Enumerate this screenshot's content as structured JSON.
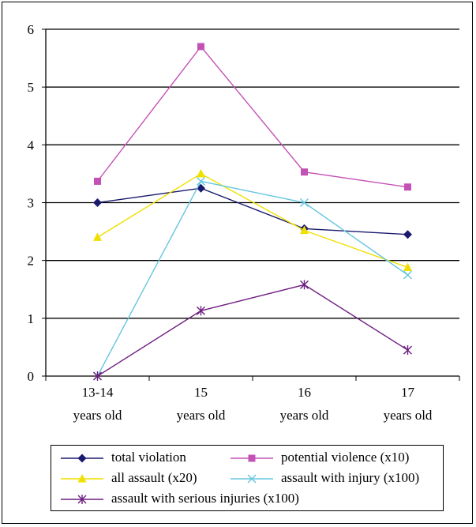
{
  "chart_data": {
    "type": "line",
    "title": "",
    "xlabel": "",
    "ylabel": "",
    "categories": [
      [
        "13-14",
        "years old"
      ],
      [
        "15",
        "years old"
      ],
      [
        "16",
        "years old"
      ],
      [
        "17",
        "years old"
      ]
    ],
    "ylim": [
      0,
      6
    ],
    "yticks": [
      0,
      1,
      2,
      3,
      4,
      5,
      6
    ],
    "grid": "horizontal major gridlines",
    "legend_position": "bottom",
    "series": [
      {
        "name": "total violation",
        "values": [
          3.0,
          3.25,
          2.55,
          2.45
        ],
        "color": "#1a1a6e",
        "marker": "diamond"
      },
      {
        "name": "potential violence (x10)",
        "values": [
          3.37,
          5.7,
          3.53,
          3.27
        ],
        "color": "#c452b6",
        "marker": "square"
      },
      {
        "name": "all assault (x20)",
        "values": [
          2.4,
          3.5,
          2.52,
          1.88
        ],
        "color": "#f0e000",
        "marker": "triangle"
      },
      {
        "name": "assault with injury (x100)",
        "values": [
          0.0,
          3.37,
          3.0,
          1.75
        ],
        "color": "#66c6de",
        "marker": "x"
      },
      {
        "name": "assault with serious injuries (x100)",
        "values": [
          0.0,
          1.13,
          1.58,
          0.45
        ],
        "color": "#6e1e80",
        "marker": "star"
      }
    ]
  }
}
